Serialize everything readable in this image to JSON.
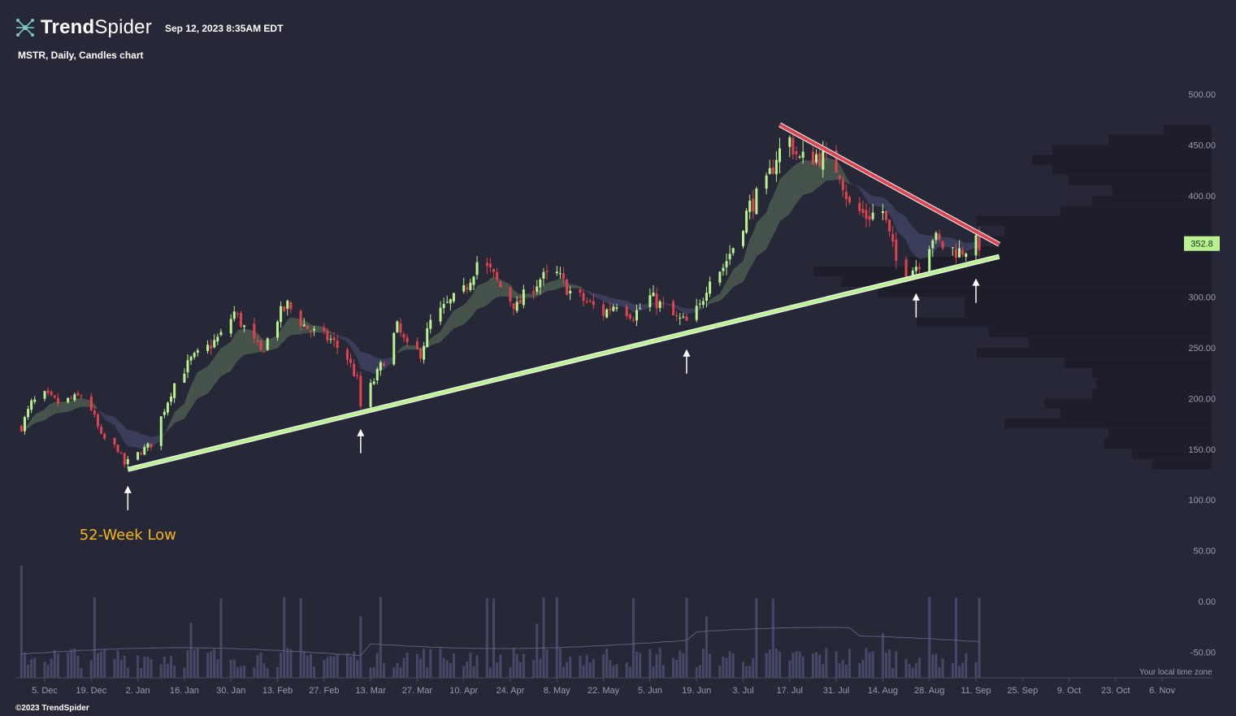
{
  "header": {
    "brand_bold": "Trend",
    "brand_light": "Spider",
    "timestamp": "Sep 12, 2023 8:35AM EDT",
    "subtitle": "MSTR, Daily, Candles chart"
  },
  "footer": {
    "copyright": "©2023 TrendSpider",
    "timezone_note": "Your local time zone"
  },
  "colors": {
    "background": "#262837",
    "up_candle": "#b9f28f",
    "down_candle": "#e0434f",
    "support_line": "#b9f28f",
    "resistance_line": "#e0434f",
    "annotation": "#f7b71d",
    "volume": "#4a4b6d",
    "profile": "#1d1e29"
  },
  "chart_data": {
    "type": "candlestick",
    "symbol": "MSTR",
    "interval": "Daily",
    "last_price": "352.8",
    "ylim": [
      -70,
      520
    ],
    "y_ticks": [
      "500.00",
      "450.00",
      "400.00",
      "350.00",
      "300.00",
      "250.00",
      "200.00",
      "150.00",
      "100.00",
      "50.00",
      "0.00",
      "-50.00"
    ],
    "x_ticks": [
      "5. Dec",
      "19. Dec",
      "2. Jan",
      "16. Jan",
      "30. Jan",
      "13. Feb",
      "27. Feb",
      "13. Mar",
      "27. Mar",
      "10. Apr",
      "24. Apr",
      "8. May",
      "22. May",
      "5. Jun",
      "19. Jun",
      "3. Jul",
      "17. Jul",
      "31. Jul",
      "14. Aug",
      "28. Aug",
      "11. Sep",
      "25. Sep",
      "9. Oct",
      "23. Oct",
      "6. Nov"
    ],
    "close_path": [
      [
        "2022-11-28",
        172
      ],
      [
        "2022-12-01",
        195
      ],
      [
        "2022-12-05",
        203
      ],
      [
        "2022-12-09",
        196
      ],
      [
        "2022-12-14",
        200
      ],
      [
        "2022-12-16",
        203
      ],
      [
        "2022-12-19",
        190
      ],
      [
        "2022-12-22",
        162
      ],
      [
        "2022-12-27",
        150
      ],
      [
        "2022-12-29",
        135
      ],
      [
        "2023-01-03",
        148
      ],
      [
        "2023-01-06",
        155
      ],
      [
        "2023-01-10",
        190
      ],
      [
        "2023-01-13",
        215
      ],
      [
        "2023-01-18",
        238
      ],
      [
        "2023-01-23",
        250
      ],
      [
        "2023-01-27",
        262
      ],
      [
        "2023-01-31",
        285
      ],
      [
        "2023-02-03",
        270
      ],
      [
        "2023-02-08",
        245
      ],
      [
        "2023-02-10",
        258
      ],
      [
        "2023-02-13",
        280
      ],
      [
        "2023-02-16",
        292
      ],
      [
        "2023-02-21",
        272
      ],
      [
        "2023-02-24",
        265
      ],
      [
        "2023-03-01",
        258
      ],
      [
        "2023-03-06",
        240
      ],
      [
        "2023-03-09",
        218
      ],
      [
        "2023-03-10",
        192
      ],
      [
        "2023-03-14",
        218
      ],
      [
        "2023-03-17",
        238
      ],
      [
        "2023-03-21",
        270
      ],
      [
        "2023-03-24",
        250
      ],
      [
        "2023-03-28",
        245
      ],
      [
        "2023-03-31",
        275
      ],
      [
        "2023-04-05",
        292
      ],
      [
        "2023-04-10",
        305
      ],
      [
        "2023-04-14",
        335
      ],
      [
        "2023-04-18",
        325
      ],
      [
        "2023-04-21",
        310
      ],
      [
        "2023-04-26",
        290
      ],
      [
        "2023-04-28",
        300
      ],
      [
        "2023-05-03",
        318
      ],
      [
        "2023-05-08",
        322
      ],
      [
        "2023-05-12",
        305
      ],
      [
        "2023-05-17",
        295
      ],
      [
        "2023-05-22",
        284
      ],
      [
        "2023-05-26",
        295
      ],
      [
        "2023-05-31",
        282
      ],
      [
        "2023-06-05",
        300
      ],
      [
        "2023-06-09",
        290
      ],
      [
        "2023-06-13",
        278
      ],
      [
        "2023-06-16",
        275
      ],
      [
        "2023-06-20",
        290
      ],
      [
        "2023-06-23",
        322
      ],
      [
        "2023-06-27",
        330
      ],
      [
        "2023-06-30",
        350
      ],
      [
        "2023-07-05",
        390
      ],
      [
        "2023-07-10",
        410
      ],
      [
        "2023-07-13",
        440
      ],
      [
        "2023-07-17",
        455
      ],
      [
        "2023-07-20",
        435
      ],
      [
        "2023-07-25",
        440
      ],
      [
        "2023-07-28",
        435
      ],
      [
        "2023-08-01",
        425
      ],
      [
        "2023-08-04",
        390
      ],
      [
        "2023-08-09",
        380
      ],
      [
        "2023-08-14",
        385
      ],
      [
        "2023-08-18",
        335
      ],
      [
        "2023-08-22",
        325
      ],
      [
        "2023-08-25",
        335
      ],
      [
        "2023-08-29",
        360
      ],
      [
        "2023-09-01",
        350
      ],
      [
        "2023-09-06",
        345
      ],
      [
        "2023-09-11",
        352.8
      ]
    ],
    "volume_profile": [
      {
        "price": 465,
        "size": 0.12
      },
      {
        "price": 455,
        "size": 0.26
      },
      {
        "price": 445,
        "size": 0.4
      },
      {
        "price": 435,
        "size": 0.45
      },
      {
        "price": 425,
        "size": 0.4
      },
      {
        "price": 415,
        "size": 0.36
      },
      {
        "price": 405,
        "size": 0.25
      },
      {
        "price": 395,
        "size": 0.3
      },
      {
        "price": 385,
        "size": 0.38
      },
      {
        "price": 375,
        "size": 0.59
      },
      {
        "price": 365,
        "size": 0.52
      },
      {
        "price": 355,
        "size": 0.55
      },
      {
        "price": 345,
        "size": 0.59
      },
      {
        "price": 335,
        "size": 0.76
      },
      {
        "price": 325,
        "size": 1.0
      },
      {
        "price": 315,
        "size": 0.93
      },
      {
        "price": 305,
        "size": 0.84
      },
      {
        "price": 295,
        "size": 0.62
      },
      {
        "price": 285,
        "size": 0.62
      },
      {
        "price": 275,
        "size": 0.74
      },
      {
        "price": 265,
        "size": 0.56
      },
      {
        "price": 255,
        "size": 0.46
      },
      {
        "price": 245,
        "size": 0.59
      },
      {
        "price": 235,
        "size": 0.37
      },
      {
        "price": 225,
        "size": 0.3
      },
      {
        "price": 215,
        "size": 0.29
      },
      {
        "price": 205,
        "size": 0.3
      },
      {
        "price": 195,
        "size": 0.42
      },
      {
        "price": 185,
        "size": 0.38
      },
      {
        "price": 175,
        "size": 0.52
      },
      {
        "price": 165,
        "size": 0.26
      },
      {
        "price": 155,
        "size": 0.27
      },
      {
        "price": 145,
        "size": 0.2
      },
      {
        "price": 135,
        "size": 0.15
      }
    ],
    "support_line": {
      "from": [
        "2022-12-30",
        130
      ],
      "to": [
        "2023-09-18",
        340
      ]
    },
    "resistance_line": {
      "from": [
        "2023-07-14",
        470
      ],
      "to": [
        "2023-09-18",
        352
      ]
    },
    "touch_points": [
      "2022-12-30",
      "2023-03-10",
      "2023-06-16",
      "2023-08-24",
      "2023-09-11"
    ],
    "annotations": [
      {
        "text": "52-Week Low"
      }
    ]
  }
}
